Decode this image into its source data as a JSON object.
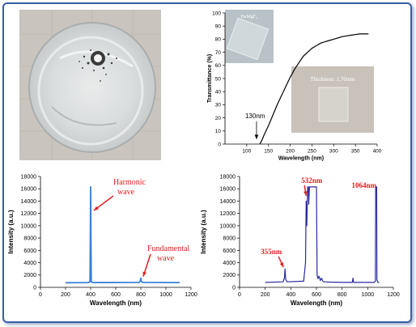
{
  "figure": {
    "photo_insets": [
      {
        "label": "BaMgF₄"
      },
      {
        "label": "Thickness: 1.76mm"
      }
    ]
  },
  "chart_data": [
    {
      "id": "transmittance",
      "type": "line",
      "xlabel": "Wavelength (nm)",
      "ylabel": "Transmittance (%)",
      "xlim": [
        50,
        400
      ],
      "ylim": [
        0,
        100
      ],
      "xticks": [
        100,
        150,
        200,
        250,
        300,
        350,
        400
      ],
      "yticks": [
        0,
        10,
        20,
        30,
        40,
        50,
        60,
        70,
        80,
        90,
        100
      ],
      "annotations": [
        {
          "text": "130nm",
          "x": 130
        }
      ],
      "series": [
        {
          "x": [
            130,
            135,
            140,
            150,
            160,
            170,
            180,
            190,
            200,
            210,
            220,
            230,
            240,
            250,
            260,
            270,
            280,
            290,
            300,
            310,
            320,
            330,
            340,
            350,
            360,
            370,
            380
          ],
          "y": [
            0,
            3,
            7,
            14,
            22,
            30,
            37,
            44,
            51,
            57,
            62,
            67,
            70,
            73,
            75,
            77,
            78,
            79,
            80,
            81,
            82,
            82.5,
            83,
            83.5,
            84,
            84,
            84
          ]
        }
      ]
    },
    {
      "id": "spectrum-1",
      "type": "line",
      "xlabel": "Wavelength (nm)",
      "ylabel": "Intensity (a.u.)",
      "xlim": [
        0,
        1200
      ],
      "ylim": [
        0,
        18000
      ],
      "xticks": [
        0,
        200,
        400,
        600,
        800,
        1000,
        1200
      ],
      "yticks": [
        0,
        2000,
        4000,
        6000,
        8000,
        10000,
        12000,
        14000,
        16000,
        18000
      ],
      "color": "#3a7fd5",
      "annotations": [
        {
          "text_lines": [
            "Harmonic",
            "wave"
          ],
          "x": 400,
          "y": 16300
        },
        {
          "text_lines": [
            "Fundamental",
            "wave"
          ],
          "x": 800,
          "y": 1500
        }
      ],
      "series": [
        {
          "x": [
            200,
            380,
            395,
            398,
            400,
            402,
            405,
            420,
            790,
            797,
            800,
            803,
            810,
            1110
          ],
          "y": [
            750,
            780,
            900,
            9000,
            16300,
            9000,
            900,
            780,
            800,
            1100,
            1500,
            1100,
            800,
            780
          ]
        }
      ]
    },
    {
      "id": "spectrum-2",
      "type": "line",
      "xlabel": "Wavelength (nm)",
      "ylabel": "Intensity (a.u.)",
      "xlim": [
        0,
        1200
      ],
      "ylim": [
        0,
        18000
      ],
      "xticks": [
        0,
        200,
        400,
        600,
        800,
        1000,
        1200
      ],
      "yticks": [
        0,
        2000,
        4000,
        6000,
        8000,
        10000,
        12000,
        14000,
        16000,
        18000
      ],
      "color": "#2a2a9e",
      "annotations": [
        {
          "text": "355nm",
          "x": 355,
          "y": 3000
        },
        {
          "text": "532nm",
          "x": 532,
          "y": 16300
        },
        {
          "text": "1064nm",
          "x": 1064,
          "y": 16300
        }
      ],
      "series": [
        {
          "x": [
            200,
            340,
            350,
            355,
            360,
            370,
            500,
            515,
            520,
            525,
            530,
            532,
            537,
            540,
            545,
            600,
            605,
            612,
            620,
            630,
            640,
            650,
            660,
            700,
            800,
            880,
            885,
            890,
            1050,
            1060,
            1062,
            1070,
            1072,
            1080,
            1090
          ],
          "y": [
            800,
            900,
            1500,
            3000,
            1300,
            900,
            1000,
            4000,
            14000,
            10000,
            15000,
            16300,
            16300,
            13500,
            16300,
            16300,
            2000,
            1400,
            1800,
            1100,
            1500,
            1000,
            900,
            850,
            800,
            800,
            1500,
            800,
            800,
            1000,
            16300,
            16300,
            1200,
            800,
            800
          ]
        }
      ]
    }
  ]
}
